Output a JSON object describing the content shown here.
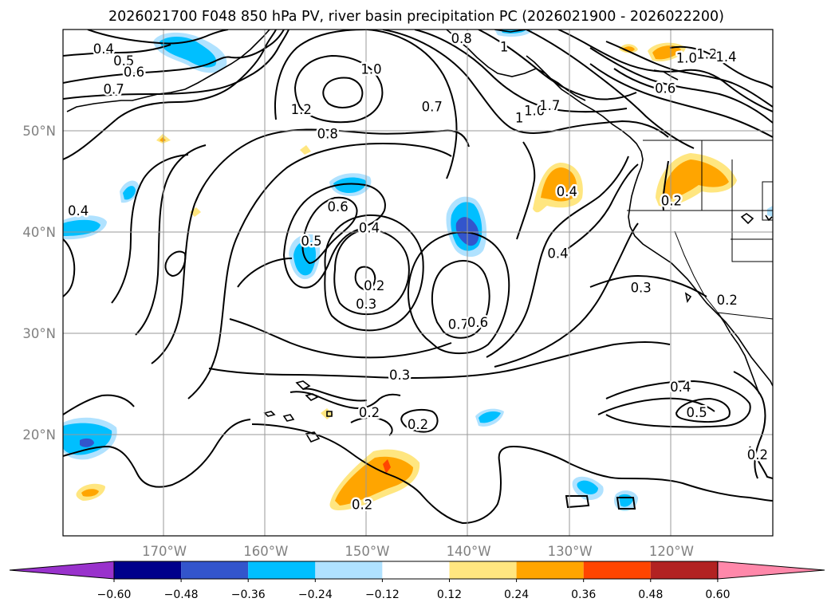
{
  "title": "2026021700 F048 850 hPa PV, river basin precipitation PC (2026021900 - 2026022200)",
  "map": {
    "lon_range": [
      -180,
      -110
    ],
    "lat_range": [
      10,
      60
    ],
    "lon_ticks": [
      {
        "lon": -170,
        "label": "170°W"
      },
      {
        "lon": -160,
        "label": "160°W"
      },
      {
        "lon": -150,
        "label": "150°W"
      },
      {
        "lon": -140,
        "label": "140°W"
      },
      {
        "lon": -130,
        "label": "130°W"
      },
      {
        "lon": -120,
        "label": "120°W"
      }
    ],
    "lat_ticks": [
      {
        "lat": 50,
        "label": "50°N"
      },
      {
        "lat": 40,
        "label": "40°N"
      },
      {
        "lat": 30,
        "label": "30°N"
      },
      {
        "lat": 20,
        "label": "20°N"
      }
    ],
    "grid": true,
    "contour_field": "850 hPa PV",
    "shaded_field": "river basin precipitation PC",
    "contour_labels": [
      {
        "text": "0.4",
        "lon": -176,
        "lat": 58
      },
      {
        "text": "0.5",
        "lon": -174,
        "lat": 56.8
      },
      {
        "text": "0.6",
        "lon": -173,
        "lat": 55.7
      },
      {
        "text": "0.7",
        "lon": -175,
        "lat": 54
      },
      {
        "text": "1.2",
        "lon": -156.5,
        "lat": 52
      },
      {
        "text": "1.0",
        "lon": -149.6,
        "lat": 56
      },
      {
        "text": "0.7",
        "lon": -143.6,
        "lat": 52.3
      },
      {
        "text": "0.8",
        "lon": -140.7,
        "lat": 59
      },
      {
        "text": "1",
        "lon": -136.5,
        "lat": 58.2
      },
      {
        "text": "0.8",
        "lon": -153.9,
        "lat": 49.6
      },
      {
        "text": "0.6",
        "lon": -152.9,
        "lat": 42.4
      },
      {
        "text": "0.4",
        "lon": -149.8,
        "lat": 40.3
      },
      {
        "text": "0.5",
        "lon": -155.5,
        "lat": 39
      },
      {
        "text": "0.2",
        "lon": -149.3,
        "lat": 34.6
      },
      {
        "text": "0.3",
        "lon": -150.1,
        "lat": 32.8
      },
      {
        "text": "0.4",
        "lon": -178.5,
        "lat": 42
      },
      {
        "text": "0.7",
        "lon": -141,
        "lat": 30.8
      },
      {
        "text": "0.6",
        "lon": -139.1,
        "lat": 31
      },
      {
        "text": "0.4",
        "lon": -130.3,
        "lat": 43.9
      },
      {
        "text": "0.4",
        "lon": -131.2,
        "lat": 37.8
      },
      {
        "text": "0.3",
        "lon": -123,
        "lat": 34.4
      },
      {
        "text": "0.3",
        "lon": -146.8,
        "lat": 25.8
      },
      {
        "text": "0.2",
        "lon": -149.8,
        "lat": 22.1
      },
      {
        "text": "0.2",
        "lon": -145,
        "lat": 20.9
      },
      {
        "text": "0.2",
        "lon": -150.5,
        "lat": 13
      },
      {
        "text": "0.4",
        "lon": -119.1,
        "lat": 24.6
      },
      {
        "text": "0.5",
        "lon": -117.5,
        "lat": 22.1
      },
      {
        "text": "0.2",
        "lon": -111.5,
        "lat": 17.9
      },
      {
        "text": "0.2",
        "lon": -120,
        "lat": 43
      },
      {
        "text": "0.2",
        "lon": -114.5,
        "lat": 33.2
      },
      {
        "text": "0.6",
        "lon": -120.6,
        "lat": 54.1
      },
      {
        "text": "1.0",
        "lon": -118.5,
        "lat": 57.1
      },
      {
        "text": "1.2",
        "lon": -116.5,
        "lat": 57.5
      },
      {
        "text": "1.4",
        "lon": -114.6,
        "lat": 57.2
      },
      {
        "text": "1.0",
        "lon": -133.5,
        "lat": 51.9
      },
      {
        "text": "1.7",
        "lon": -132,
        "lat": 52.4
      },
      {
        "text": "1",
        "lon": -135,
        "lat": 51.2
      }
    ]
  },
  "colorbar": {
    "ticks": [
      "−0.60",
      "−0.48",
      "−0.36",
      "−0.24",
      "−0.12",
      "0.12",
      "0.24",
      "0.36",
      "0.48",
      "0.60"
    ],
    "colors": [
      "#9932cc",
      "#00008b",
      "#3355cc",
      "#00bfff",
      "#b0e2ff",
      "#ffffff",
      "#ffe680",
      "#ffa500",
      "#ff4500",
      "#b22222",
      "#ff88aa"
    ]
  }
}
